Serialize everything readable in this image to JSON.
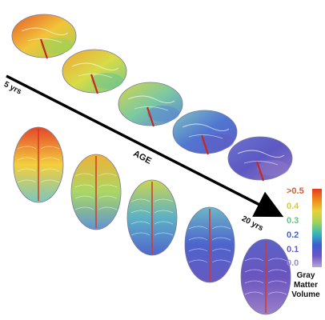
{
  "axis": {
    "start_label": "5 yrs",
    "middle_label": "AGE",
    "end_label": "20 yrs"
  },
  "legend": {
    "ticks": [
      {
        "label": ">0.5",
        "color": "#e4572e"
      },
      {
        "label": "0.4",
        "color": "#d9c83c"
      },
      {
        "label": "0.3",
        "color": "#66c08a"
      },
      {
        "label": "0.2",
        "color": "#4860c6"
      },
      {
        "label": "0.1",
        "color": "#6a5bbf"
      },
      {
        "label": "0.0",
        "color": "#9a8acb"
      }
    ],
    "title_lines": [
      "Gray",
      "Matter",
      "Volume"
    ],
    "gradient_colors": [
      "#e23b1e",
      "#ef8a1a",
      "#e8d23a",
      "#9ed45a",
      "#35b8b8",
      "#3c5cd0",
      "#6b55c4",
      "#b9a5d8"
    ]
  },
  "stages": [
    {
      "stage": 1,
      "lateral_colors": [
        "#e65a2a",
        "#f2c53a",
        "#9cd156"
      ],
      "dorsal_colors": [
        "#e5452a",
        "#f3cf3d",
        "#79c7c0"
      ]
    },
    {
      "stage": 2,
      "lateral_colors": [
        "#f0a534",
        "#d8dc48",
        "#6ec58d"
      ],
      "dorsal_colors": [
        "#f0b136",
        "#aad765",
        "#5f94d4"
      ]
    },
    {
      "stage": 3,
      "lateral_colors": [
        "#d6d548",
        "#7cc9a1",
        "#5a86d4"
      ],
      "dorsal_colors": [
        "#c9d653",
        "#5db1c5",
        "#5066cc"
      ]
    },
    {
      "stage": 4,
      "lateral_colors": [
        "#7fc5c0",
        "#5176d1",
        "#5e5dc4"
      ],
      "dorsal_colors": [
        "#6db7c7",
        "#4c64cc",
        "#6759c1"
      ]
    },
    {
      "stage": 5,
      "lateral_colors": [
        "#6b73cf",
        "#5c58c2",
        "#8e77c6"
      ],
      "dorsal_colors": [
        "#5a62c8",
        "#6a55be",
        "#9a7fc9"
      ]
    }
  ]
}
